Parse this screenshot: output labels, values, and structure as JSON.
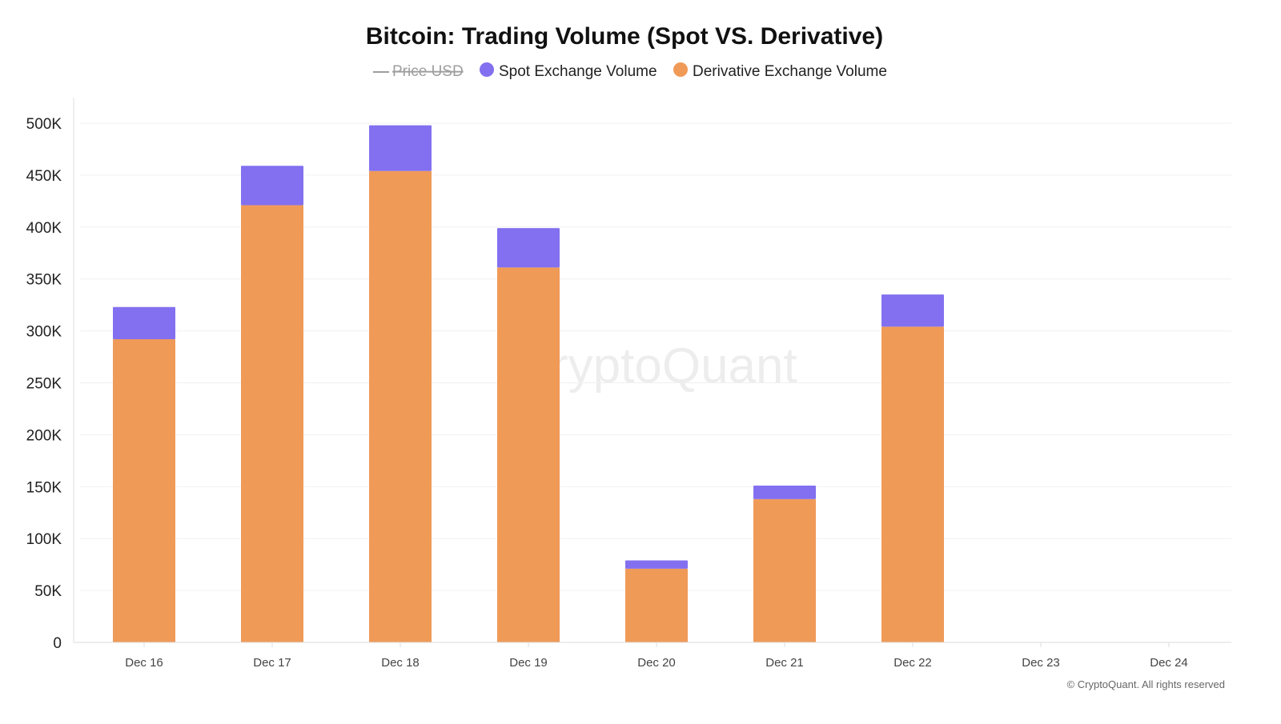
{
  "chart_data": {
    "type": "bar",
    "stacked": true,
    "title": "Bitcoin: Trading Volume (Spot VS. Derivative)",
    "legend": [
      {
        "name": "Price USD",
        "hidden": true,
        "color": "#9e9e9e"
      },
      {
        "name": "Spot Exchange Volume",
        "color": "#8270f0"
      },
      {
        "name": "Derivative Exchange Volume",
        "color": "#f09a58"
      }
    ],
    "legend_position": "top-center",
    "categories": [
      "Dec 16",
      "Dec 17",
      "Dec 18",
      "Dec 19",
      "Dec 20",
      "Dec 21",
      "Dec 22",
      "Dec 23",
      "Dec 24"
    ],
    "series": [
      {
        "name": "Derivative Exchange Volume",
        "color": "#f09a58",
        "values": [
          292000,
          421000,
          454000,
          361000,
          71000,
          138000,
          304000,
          null,
          null
        ]
      },
      {
        "name": "Spot Exchange Volume",
        "color": "#8270f0",
        "values": [
          31000,
          38000,
          44000,
          38000,
          8000,
          13000,
          31000,
          null,
          null
        ]
      }
    ],
    "yticks": [
      "0",
      "50K",
      "100K",
      "150K",
      "200K",
      "250K",
      "300K",
      "350K",
      "400K",
      "450K",
      "500K"
    ],
    "ylim": [
      0,
      500000
    ],
    "grid": true,
    "watermark": "CryptoQuant",
    "footer": "© CryptoQuant. All rights reserved"
  }
}
